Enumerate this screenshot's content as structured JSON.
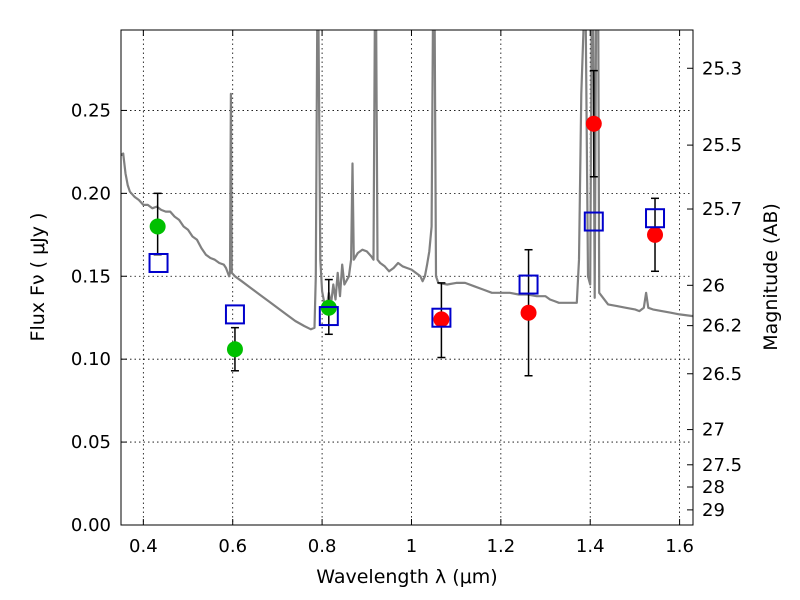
{
  "chart_data": {
    "type": "scatter",
    "xlabel": "Wavelength  λ (μm)",
    "ylabel": "Flux  Fν  ( μJy )",
    "y2label": "Magnitude (AB)",
    "xlim": [
      0.35,
      1.63
    ],
    "ylim": [
      0.0,
      0.2985
    ],
    "grid": true,
    "x_ticks": [
      {
        "value": 0.4,
        "label": "0.4"
      },
      {
        "value": 0.6,
        "label": "0.6"
      },
      {
        "value": 0.8,
        "label": "0.8"
      },
      {
        "value": 1.0,
        "label": "1"
      },
      {
        "value": 1.2,
        "label": "1.2"
      },
      {
        "value": 1.4,
        "label": "1.4"
      },
      {
        "value": 1.6,
        "label": "1.6"
      }
    ],
    "y_ticks": [
      {
        "value": 0.0,
        "label": "0.00"
      },
      {
        "value": 0.05,
        "label": "0.05"
      },
      {
        "value": 0.1,
        "label": "0.10"
      },
      {
        "value": 0.15,
        "label": "0.15"
      },
      {
        "value": 0.2,
        "label": "0.20"
      },
      {
        "value": 0.25,
        "label": "0.25"
      }
    ],
    "y2_ticks": [
      {
        "value": 25.3,
        "label": "25.3"
      },
      {
        "value": 25.5,
        "label": "25.5"
      },
      {
        "value": 25.7,
        "label": "25.7"
      },
      {
        "value": 26.0,
        "label": "26"
      },
      {
        "value": 26.2,
        "label": "26.2"
      },
      {
        "value": 26.5,
        "label": "26.5"
      },
      {
        "value": 27.0,
        "label": "27"
      },
      {
        "value": 27.5,
        "label": "27.5"
      },
      {
        "value": 28.0,
        "label": "28"
      },
      {
        "value": 29.0,
        "label": "29"
      }
    ],
    "model_spectrum": {
      "color": "#808080",
      "points": [
        [
          0.35,
          0.223
        ],
        [
          0.355,
          0.224
        ],
        [
          0.36,
          0.212
        ],
        [
          0.365,
          0.205
        ],
        [
          0.37,
          0.201
        ],
        [
          0.38,
          0.198
        ],
        [
          0.39,
          0.196
        ],
        [
          0.4,
          0.193
        ],
        [
          0.41,
          0.193
        ],
        [
          0.42,
          0.191
        ],
        [
          0.43,
          0.192
        ],
        [
          0.44,
          0.19
        ],
        [
          0.45,
          0.189
        ],
        [
          0.46,
          0.189
        ],
        [
          0.47,
          0.186
        ],
        [
          0.48,
          0.184
        ],
        [
          0.49,
          0.18
        ],
        [
          0.5,
          0.178
        ],
        [
          0.51,
          0.174
        ],
        [
          0.52,
          0.172
        ],
        [
          0.53,
          0.167
        ],
        [
          0.54,
          0.163
        ],
        [
          0.55,
          0.161
        ],
        [
          0.56,
          0.16
        ],
        [
          0.57,
          0.158
        ],
        [
          0.58,
          0.157
        ],
        [
          0.585,
          0.155
        ],
        [
          0.592,
          0.15
        ],
        [
          0.594,
          0.152
        ],
        [
          0.596,
          0.26
        ],
        [
          0.598,
          0.152
        ],
        [
          0.605,
          0.15
        ],
        [
          0.62,
          0.147
        ],
        [
          0.64,
          0.143
        ],
        [
          0.66,
          0.139
        ],
        [
          0.68,
          0.135
        ],
        [
          0.7,
          0.131
        ],
        [
          0.72,
          0.127
        ],
        [
          0.74,
          0.123
        ],
        [
          0.76,
          0.12
        ],
        [
          0.775,
          0.118
        ],
        [
          0.783,
          0.119
        ],
        [
          0.786,
          0.15
        ],
        [
          0.789,
          0.299
        ],
        [
          0.792,
          0.299
        ],
        [
          0.796,
          0.16
        ],
        [
          0.8,
          0.141
        ],
        [
          0.805,
          0.134
        ],
        [
          0.81,
          0.131
        ],
        [
          0.815,
          0.14
        ],
        [
          0.82,
          0.133
        ],
        [
          0.825,
          0.145
        ],
        [
          0.83,
          0.136
        ],
        [
          0.835,
          0.152
        ],
        [
          0.84,
          0.138
        ],
        [
          0.845,
          0.157
        ],
        [
          0.85,
          0.145
        ],
        [
          0.86,
          0.15
        ],
        [
          0.865,
          0.16
        ],
        [
          0.868,
          0.218
        ],
        [
          0.871,
          0.16
        ],
        [
          0.88,
          0.164
        ],
        [
          0.89,
          0.166
        ],
        [
          0.9,
          0.165
        ],
        [
          0.91,
          0.162
        ],
        [
          0.915,
          0.16
        ],
        [
          0.918,
          0.299
        ],
        [
          0.921,
          0.299
        ],
        [
          0.924,
          0.16
        ],
        [
          0.93,
          0.158
        ],
        [
          0.94,
          0.156
        ],
        [
          0.95,
          0.153
        ],
        [
          0.96,
          0.155
        ],
        [
          0.97,
          0.158
        ],
        [
          0.98,
          0.156
        ],
        [
          0.99,
          0.155
        ],
        [
          1.0,
          0.154
        ],
        [
          1.01,
          0.152
        ],
        [
          1.02,
          0.15
        ],
        [
          1.025,
          0.147
        ],
        [
          1.03,
          0.15
        ],
        [
          1.035,
          0.157
        ],
        [
          1.04,
          0.165
        ],
        [
          1.045,
          0.18
        ],
        [
          1.048,
          0.299
        ],
        [
          1.052,
          0.299
        ],
        [
          1.055,
          0.15
        ],
        [
          1.06,
          0.146
        ],
        [
          1.08,
          0.145
        ],
        [
          1.1,
          0.146
        ],
        [
          1.12,
          0.146
        ],
        [
          1.14,
          0.144
        ],
        [
          1.16,
          0.142
        ],
        [
          1.18,
          0.14
        ],
        [
          1.2,
          0.14
        ],
        [
          1.22,
          0.14
        ],
        [
          1.24,
          0.139
        ],
        [
          1.26,
          0.139
        ],
        [
          1.28,
          0.138
        ],
        [
          1.3,
          0.138
        ],
        [
          1.31,
          0.136
        ],
        [
          1.32,
          0.135
        ],
        [
          1.33,
          0.134
        ],
        [
          1.34,
          0.134
        ],
        [
          1.35,
          0.134
        ],
        [
          1.36,
          0.134
        ],
        [
          1.37,
          0.134
        ],
        [
          1.375,
          0.16
        ],
        [
          1.38,
          0.26
        ],
        [
          1.385,
          0.299
        ],
        [
          1.39,
          0.299
        ],
        [
          1.395,
          0.15
        ],
        [
          1.4,
          0.145
        ],
        [
          1.403,
          0.299
        ],
        [
          1.407,
          0.299
        ],
        [
          1.41,
          0.137
        ],
        [
          1.413,
          0.299
        ],
        [
          1.418,
          0.299
        ],
        [
          1.42,
          0.14
        ],
        [
          1.44,
          0.133
        ],
        [
          1.46,
          0.132
        ],
        [
          1.48,
          0.131
        ],
        [
          1.5,
          0.13
        ],
        [
          1.51,
          0.129
        ],
        [
          1.52,
          0.131
        ],
        [
          1.525,
          0.14
        ],
        [
          1.53,
          0.131
        ],
        [
          1.54,
          0.13
        ],
        [
          1.56,
          0.129
        ],
        [
          1.58,
          0.128
        ],
        [
          1.6,
          0.127
        ],
        [
          1.63,
          0.126
        ]
      ]
    },
    "series": [
      {
        "marker": "circle",
        "color": "#00c000",
        "points": [
          {
            "x": 0.432,
            "y": 0.18,
            "yerr_low": 0.163,
            "yerr_high": 0.2
          },
          {
            "x": 0.605,
            "y": 0.106,
            "yerr_low": 0.093,
            "yerr_high": 0.119
          },
          {
            "x": 0.815,
            "y": 0.131,
            "yerr_low": 0.115,
            "yerr_high": 0.148
          }
        ]
      },
      {
        "marker": "circle",
        "color": "#ff0000",
        "points": [
          {
            "x": 1.067,
            "y": 0.124,
            "yerr_low": 0.101,
            "yerr_high": 0.146
          },
          {
            "x": 1.262,
            "y": 0.128,
            "yerr_low": 0.09,
            "yerr_high": 0.166
          },
          {
            "x": 1.408,
            "y": 0.242,
            "yerr_low": 0.21,
            "yerr_high": 0.274
          },
          {
            "x": 1.545,
            "y": 0.175,
            "yerr_low": 0.153,
            "yerr_high": 0.197
          }
        ]
      },
      {
        "marker": "square",
        "color": "#0000cc",
        "points": [
          {
            "x": 0.434,
            "y": 0.158
          },
          {
            "x": 0.605,
            "y": 0.127
          },
          {
            "x": 0.815,
            "y": 0.126
          },
          {
            "x": 1.067,
            "y": 0.125
          },
          {
            "x": 1.262,
            "y": 0.145
          },
          {
            "x": 1.408,
            "y": 0.183
          },
          {
            "x": 1.545,
            "y": 0.185
          }
        ]
      }
    ]
  }
}
